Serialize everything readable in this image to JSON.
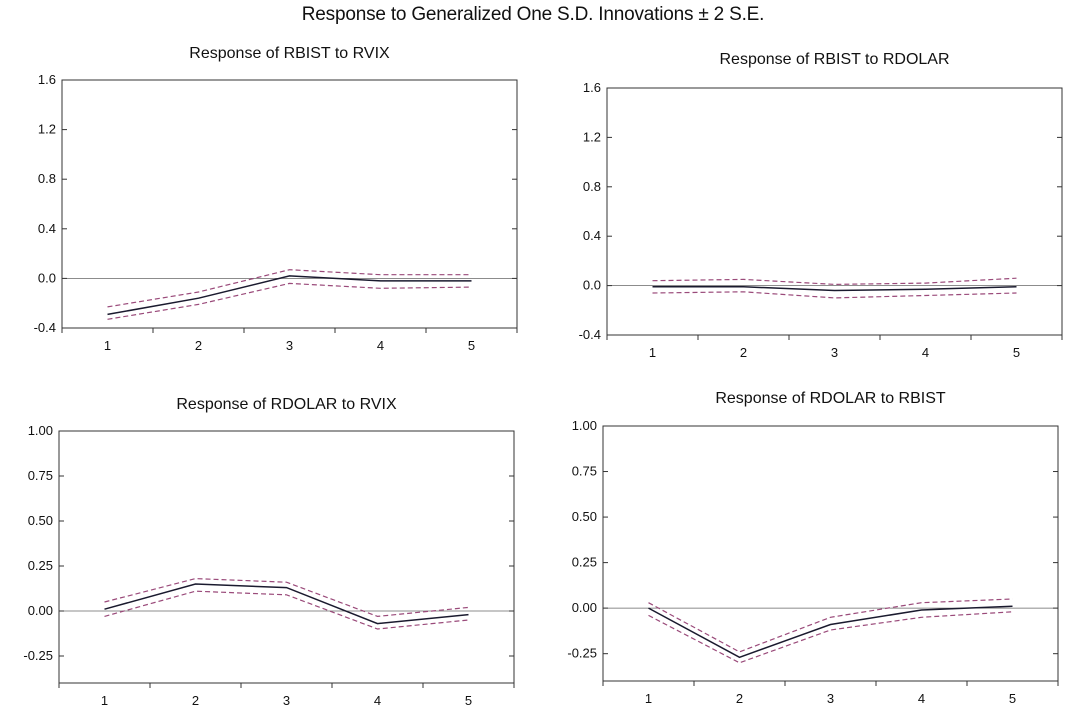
{
  "title": "Response to Generalized One S.D. Innovations ± 2 S.E.",
  "colors": {
    "response": "#1a1a2e",
    "bands": "#9a4a7a",
    "zero_line": "#666666"
  },
  "chart_data": [
    {
      "type": "line",
      "title": "Response of RBIST to RVIX",
      "x": [
        1,
        2,
        3,
        4,
        5
      ],
      "ylim": [
        -0.4,
        1.6
      ],
      "yticks": [
        "-0.4",
        "0.0",
        "0.4",
        "0.8",
        "1.2",
        "1.6"
      ],
      "xticks": [
        "1",
        "2",
        "3",
        "4",
        "5"
      ],
      "series": [
        {
          "values": [
            -0.29,
            -0.16,
            0.02,
            -0.02,
            -0.02
          ]
        },
        {
          "values": [
            -0.23,
            -0.11,
            0.07,
            0.03,
            0.03
          ]
        },
        {
          "values": [
            -0.33,
            -0.21,
            -0.04,
            -0.08,
            -0.07
          ]
        }
      ]
    },
    {
      "type": "line",
      "title": "Response of RBIST to RDOLAR",
      "x": [
        1,
        2,
        3,
        4,
        5
      ],
      "ylim": [
        -0.4,
        1.6
      ],
      "yticks": [
        "-0.4",
        "0.0",
        "0.4",
        "0.8",
        "1.2",
        "1.6"
      ],
      "xticks": [
        "1",
        "2",
        "3",
        "4",
        "5"
      ],
      "series": [
        {
          "values": [
            -0.01,
            -0.01,
            -0.04,
            -0.03,
            -0.01
          ]
        },
        {
          "values": [
            0.04,
            0.05,
            0.01,
            0.02,
            0.06
          ]
        },
        {
          "values": [
            -0.06,
            -0.05,
            -0.1,
            -0.08,
            -0.06
          ]
        }
      ]
    },
    {
      "type": "line",
      "title": "Response of RDOLAR to RVIX",
      "x": [
        1,
        2,
        3,
        4,
        5
      ],
      "ylim": [
        -0.4,
        1.0
      ],
      "yticks": [
        "-0.25",
        "0.00",
        "0.25",
        "0.50",
        "0.75",
        "1.00"
      ],
      "xticks": [
        "1",
        "2",
        "3",
        "4",
        "5"
      ],
      "series": [
        {
          "values": [
            0.01,
            0.15,
            0.13,
            -0.07,
            -0.02
          ]
        },
        {
          "values": [
            0.05,
            0.18,
            0.16,
            -0.03,
            0.02
          ]
        },
        {
          "values": [
            -0.03,
            0.11,
            0.09,
            -0.1,
            -0.05
          ]
        }
      ]
    },
    {
      "type": "line",
      "title": "Response of RDOLAR to RBIST",
      "x": [
        1,
        2,
        3,
        4,
        5
      ],
      "ylim": [
        -0.4,
        1.0
      ],
      "yticks": [
        "-0.25",
        "0.00",
        "0.25",
        "0.50",
        "0.75",
        "1.00"
      ],
      "xticks": [
        "1",
        "2",
        "3",
        "4",
        "5"
      ],
      "series": [
        {
          "values": [
            0.0,
            -0.27,
            -0.09,
            -0.01,
            0.01
          ]
        },
        {
          "values": [
            0.03,
            -0.24,
            -0.05,
            0.03,
            0.05
          ]
        },
        {
          "values": [
            -0.04,
            -0.3,
            -0.12,
            -0.05,
            -0.02
          ]
        }
      ]
    }
  ]
}
